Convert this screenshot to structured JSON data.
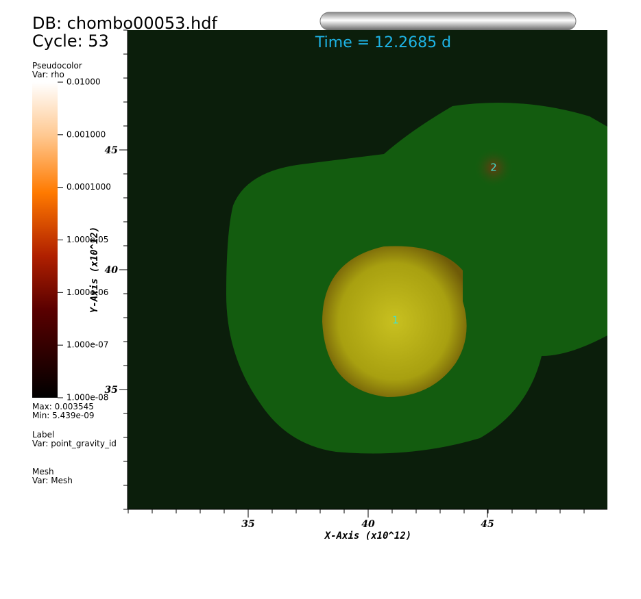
{
  "header": {
    "database": "DB: chombo00053.hdf",
    "cycle": "Cycle: 53",
    "time": "Time = 12.2685 d"
  },
  "legend": {
    "plot": "Pseudocolor",
    "var": "Var: rho",
    "labels": [
      "0.01000",
      "0.001000",
      "0.0001000",
      "1.000e-05",
      "1.000e-06",
      "1.000e-07",
      "1.000e-08"
    ],
    "max": "Max:  0.003545",
    "min": "Min:  5.439e-09"
  },
  "label_plot": {
    "title": "Label",
    "var": "Var: point_gravity_id"
  },
  "mesh_plot": {
    "title": "Mesh",
    "var": "Var: Mesh"
  },
  "axes": {
    "x_title": "X-Axis (x10^12)",
    "y_title": "Y-Axis (x10^12)",
    "x_ticks": [
      "35",
      "40",
      "45"
    ],
    "y_ticks": [
      "45",
      "40",
      "35"
    ]
  },
  "points": [
    "1",
    "2"
  ]
}
